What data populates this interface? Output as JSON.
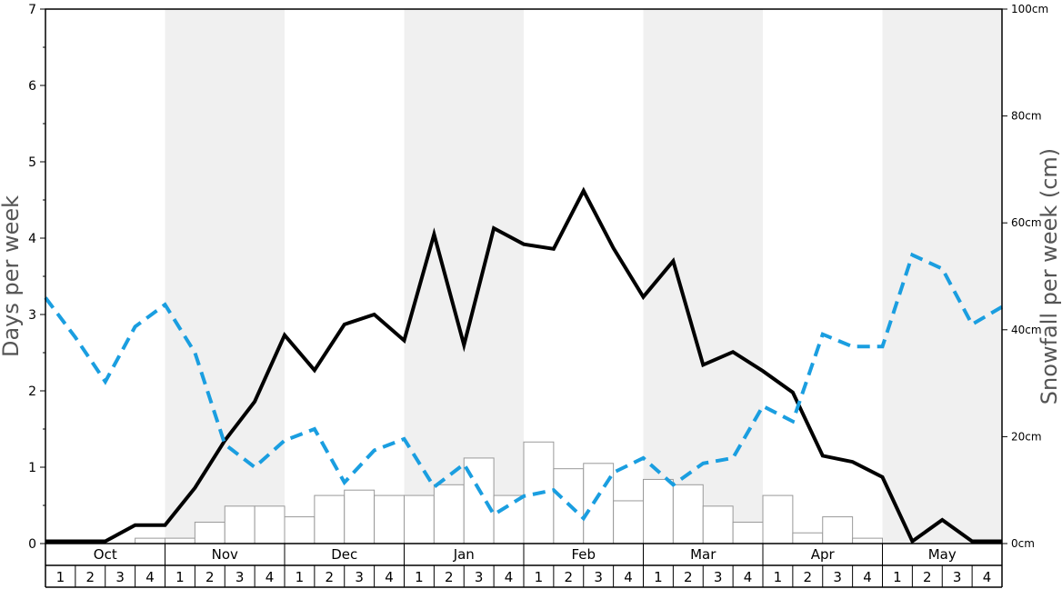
{
  "chart_data": {
    "type": "bar+line",
    "months": [
      "Oct",
      "Nov",
      "Dec",
      "Jan",
      "Feb",
      "Mar",
      "Apr",
      "May"
    ],
    "week_labels": [
      "1",
      "2",
      "3",
      "4"
    ],
    "y_left": {
      "label": "Days per week",
      "min": 0,
      "max": 7,
      "ticks": [
        "0",
        "1",
        "2",
        "3",
        "4",
        "5",
        "6",
        "7"
      ]
    },
    "y_right": {
      "label": "Snowfall per week (cm)",
      "min": 0,
      "max": 100,
      "ticks": [
        "0cm",
        "20cm",
        "40cm",
        "60cm",
        "80cm",
        "100cm"
      ]
    },
    "series": [
      {
        "kind": "bar",
        "axis": "right",
        "color": "#ffffff",
        "stroke": "#999999",
        "values": [
          0,
          0,
          0,
          1,
          1,
          4,
          7,
          7,
          5,
          9,
          10,
          9,
          9,
          11,
          16,
          9,
          19,
          14,
          15,
          8,
          12,
          11,
          7,
          4,
          9,
          2,
          5,
          1,
          0,
          0,
          0,
          0
        ]
      },
      {
        "kind": "line",
        "axis": "left",
        "color": "#000000",
        "dashed": false,
        "values": [
          0.03,
          0.03,
          0.03,
          0.24,
          0.24,
          0.73,
          1.35,
          1.86,
          2.73,
          2.27,
          2.87,
          3.0,
          2.66,
          4.05,
          2.6,
          4.13,
          3.92,
          3.86,
          4.62,
          3.87,
          3.23,
          3.7,
          2.34,
          2.51,
          2.26,
          1.98,
          1.15,
          1.07,
          0.87,
          0.03,
          0.31,
          0.03,
          0.03
        ]
      },
      {
        "kind": "line",
        "axis": "left",
        "color": "#1a9ee0",
        "dashed": true,
        "values": [
          3.22,
          2.7,
          2.12,
          2.84,
          3.13,
          2.5,
          1.3,
          1.0,
          1.35,
          1.5,
          0.8,
          1.22,
          1.37,
          0.74,
          1.04,
          0.38,
          0.62,
          0.7,
          0.33,
          0.93,
          1.12,
          0.77,
          1.05,
          1.12,
          1.8,
          1.6,
          2.74,
          2.58,
          2.58,
          3.78,
          3.6,
          2.87,
          3.1
        ]
      }
    ]
  }
}
